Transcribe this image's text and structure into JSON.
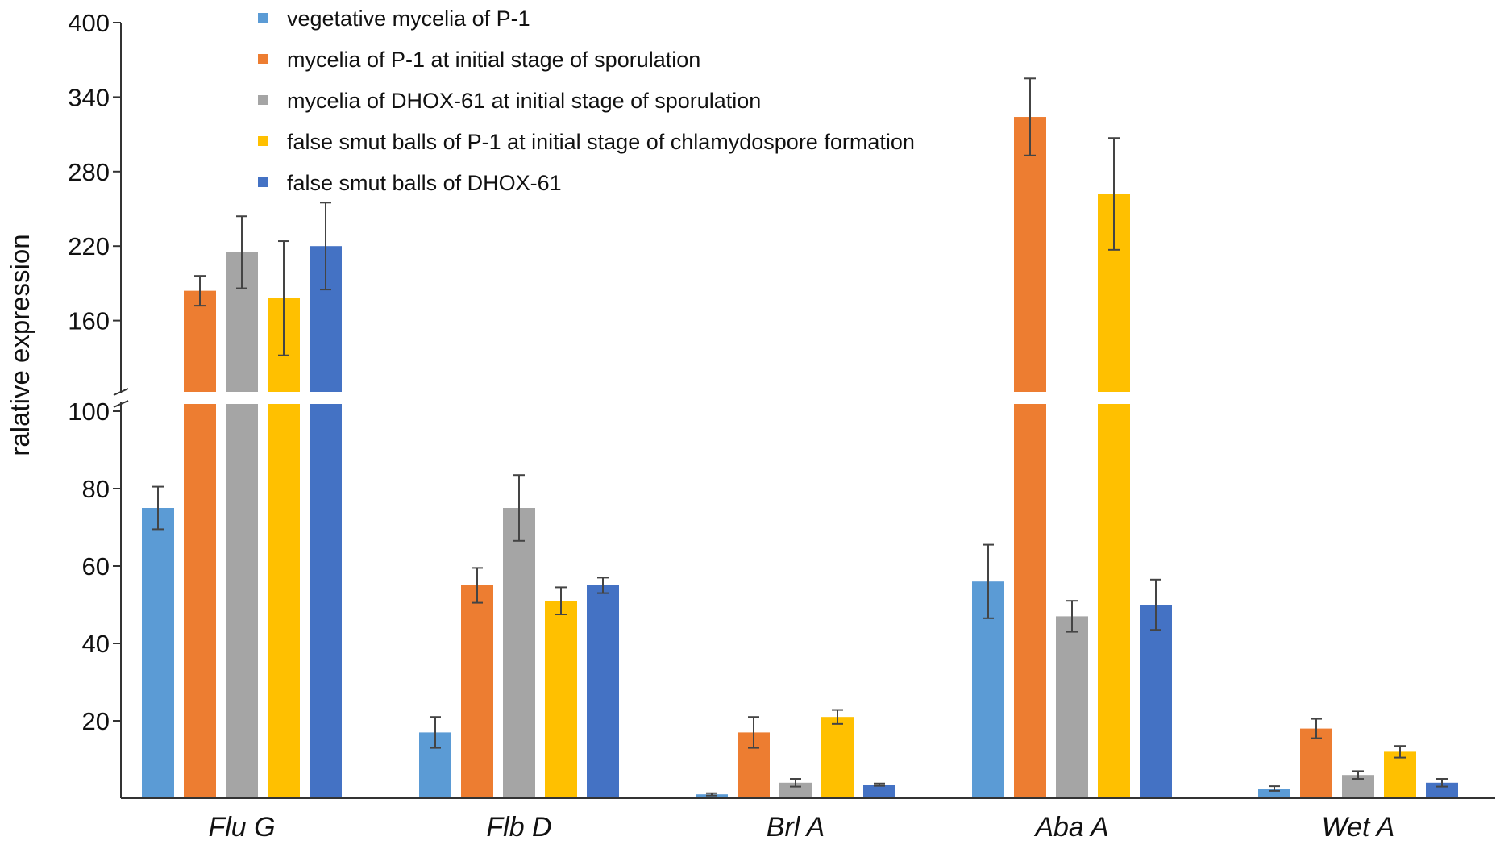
{
  "chart_data": {
    "type": "bar",
    "title": "",
    "xlabel": "",
    "ylabel": "ralative expression",
    "categories": [
      "Flu G",
      "Flb D",
      "Brl A",
      "Aba A",
      "Wet A"
    ],
    "y_axis": {
      "lower_segment": {
        "range": [
          0,
          100
        ],
        "ticks": [
          20,
          40,
          60,
          80,
          100
        ]
      },
      "upper_segment": {
        "range": [
          100,
          400
        ],
        "ticks": [
          160,
          220,
          280,
          340,
          400
        ]
      },
      "break_between": [
        100,
        100
      ]
    },
    "grid": false,
    "legend_position": "top-center",
    "series": [
      {
        "name": "vegetative mycelia of P-1",
        "color": "#5B9BD5",
        "values": [
          75,
          17,
          1,
          56,
          2.5
        ],
        "errors": [
          5.5,
          4,
          0.3,
          9.5,
          0.6
        ]
      },
      {
        "name": "mycelia of P-1 at initial stage of sporulation",
        "color": "#ED7D31",
        "values": [
          184,
          55,
          17,
          324,
          18
        ],
        "errors": [
          12,
          4.5,
          4,
          31,
          2.5
        ]
      },
      {
        "name": "mycelia of DHOX-61 at initial stage of  sporulation",
        "color": "#A5A5A5",
        "values": [
          215,
          75,
          4,
          47,
          6
        ],
        "errors": [
          29,
          8.5,
          1,
          4,
          1
        ]
      },
      {
        "name": "false smut balls of P-1 at initial stage of chlamydospore formation",
        "color": "#FFC000",
        "values": [
          178,
          51,
          21,
          262,
          12
        ],
        "errors": [
          46,
          3.5,
          1.8,
          45,
          1.5
        ]
      },
      {
        "name": "false smut balls of DHOX-61",
        "color": "#4472C4",
        "values": [
          220,
          55,
          3.5,
          50,
          4
        ],
        "errors": [
          35,
          2,
          0.3,
          6.5,
          1
        ]
      }
    ]
  }
}
